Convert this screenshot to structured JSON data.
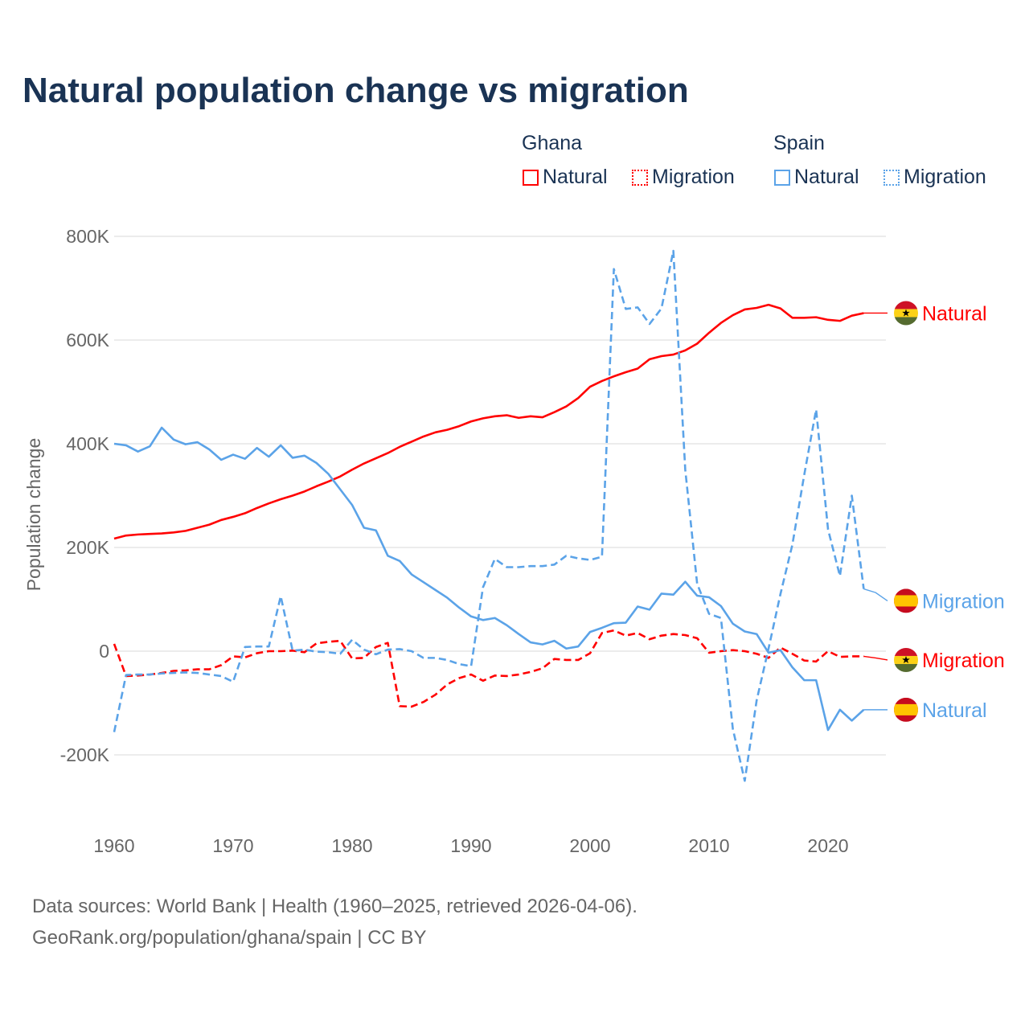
{
  "chart_data": {
    "type": "line",
    "title": "Natural population change vs migration",
    "xlabel": "",
    "ylabel": "Population change",
    "xlim": [
      1960,
      2025
    ],
    "ylim": [
      -300000,
      800000
    ],
    "x_ticks": [
      1960,
      1970,
      1980,
      1990,
      2000,
      2010,
      2020
    ],
    "x_tick_labels": [
      "1960",
      "1970",
      "1980",
      "1990",
      "2000",
      "2010",
      "2020"
    ],
    "y_ticks": [
      800000,
      600000,
      400000,
      200000,
      0,
      -200000
    ],
    "y_tick_labels": [
      "800K",
      "600K",
      "400K",
      "200K",
      "0",
      "-200K"
    ],
    "grid": true,
    "legend": {
      "placement": "top-right",
      "groups": [
        {
          "name": "Ghana",
          "items": [
            "Natural",
            "Migration"
          ]
        },
        {
          "name": "Spain",
          "items": [
            "Natural",
            "Migration"
          ]
        }
      ]
    },
    "x": [
      1960,
      1961,
      1962,
      1963,
      1964,
      1965,
      1966,
      1967,
      1968,
      1969,
      1970,
      1971,
      1972,
      1973,
      1974,
      1975,
      1976,
      1977,
      1978,
      1979,
      1980,
      1981,
      1982,
      1983,
      1984,
      1985,
      1986,
      1987,
      1988,
      1989,
      1990,
      1991,
      1992,
      1993,
      1994,
      1995,
      1996,
      1997,
      1998,
      1999,
      2000,
      2001,
      2002,
      2003,
      2004,
      2005,
      2006,
      2007,
      2008,
      2009,
      2010,
      2011,
      2012,
      2013,
      2014,
      2015,
      2016,
      2017,
      2018,
      2019,
      2020,
      2021,
      2022,
      2023,
      2024,
      2025
    ],
    "series": [
      {
        "name": "Ghana Natural",
        "country": "Ghana",
        "kind": "Natural",
        "color": "#ff0000",
        "dash": false,
        "end_label": "Natural",
        "values": [
          217000,
          223000,
          225000,
          226000,
          227000,
          229000,
          232000,
          238000,
          244000,
          253000,
          259000,
          266000,
          276000,
          285000,
          293000,
          300000,
          308000,
          318000,
          327000,
          337000,
          350000,
          362000,
          372000,
          382000,
          394000,
          404000,
          414000,
          422000,
          427000,
          434000,
          443000,
          449000,
          453000,
          455000,
          450000,
          453000,
          451000,
          461000,
          472000,
          488000,
          510000,
          521000,
          530000,
          538000,
          545000,
          563000,
          569000,
          572000,
          580000,
          593000,
          614000,
          633000,
          648000,
          659000,
          662000,
          668000,
          661000,
          643000,
          643000,
          644000,
          639000,
          637000,
          647000,
          652000,
          652000,
          652000
        ]
      },
      {
        "name": "Ghana Migration",
        "country": "Ghana",
        "kind": "Migration",
        "color": "#ff0000",
        "dash": true,
        "end_label": "Migration",
        "values": [
          14000,
          -48000,
          -47000,
          -45000,
          -42000,
          -38000,
          -37000,
          -35000,
          -35000,
          -27000,
          -10000,
          -12000,
          -4000,
          0,
          0,
          1000,
          -2000,
          15000,
          18000,
          20000,
          -14000,
          -13000,
          8000,
          16000,
          -106000,
          -107000,
          -98000,
          -84000,
          -64000,
          -52000,
          -45000,
          -57000,
          -47000,
          -48000,
          -45000,
          -40000,
          -33000,
          -15000,
          -17000,
          -17000,
          -4000,
          35000,
          40000,
          30000,
          35000,
          23000,
          30000,
          33000,
          31000,
          25000,
          -3000,
          0,
          2000,
          0,
          -5000,
          -13000,
          7000,
          -5000,
          -18000,
          -20000,
          0,
          -11000,
          -10000,
          -10000,
          -13000,
          -17000
        ]
      },
      {
        "name": "Spain Natural",
        "country": "Spain",
        "kind": "Natural",
        "color": "#5ba3e8",
        "dash": false,
        "end_label": "Natural",
        "values": [
          400000,
          397000,
          385000,
          395000,
          431000,
          408000,
          399000,
          403000,
          389000,
          369000,
          379000,
          371000,
          392000,
          375000,
          397000,
          373000,
          377000,
          363000,
          342000,
          312000,
          282000,
          238000,
          233000,
          184000,
          174000,
          148000,
          133000,
          118000,
          103000,
          84000,
          67000,
          60000,
          64000,
          50000,
          33000,
          17000,
          13000,
          20000,
          5000,
          9000,
          37000,
          45000,
          54000,
          55000,
          86000,
          80000,
          111000,
          109000,
          134000,
          107000,
          104000,
          87000,
          53000,
          38000,
          33000,
          -3000,
          2000,
          -31000,
          -56000,
          -56000,
          -152000,
          -113000,
          -134000,
          -113000,
          -113000,
          -113000
        ]
      },
      {
        "name": "Spain Migration",
        "country": "Spain",
        "kind": "Migration",
        "color": "#5ba3e8",
        "dash": true,
        "end_label": "Migration",
        "values": [
          -156000,
          -46000,
          -45000,
          -45000,
          -43000,
          -42000,
          -41000,
          -42000,
          -45000,
          -48000,
          -59000,
          8000,
          9000,
          9000,
          106000,
          1000,
          3000,
          -1000,
          -2000,
          -5000,
          22000,
          3000,
          -6000,
          3000,
          4000,
          0,
          -13000,
          -13000,
          -17000,
          -25000,
          -29000,
          123000,
          178000,
          162000,
          162000,
          164000,
          164000,
          167000,
          184000,
          179000,
          176000,
          182000,
          737000,
          660000,
          663000,
          631000,
          661000,
          772000,
          350000,
          130000,
          72000,
          64000,
          -150000,
          -250000,
          -95000,
          5000,
          110000,
          205000,
          340000,
          466000,
          235000,
          145000,
          300000,
          120000,
          113000,
          97000
        ]
      }
    ]
  },
  "legend_labels": {
    "ghana": "Ghana",
    "spain": "Spain",
    "ghana_natural": "Natural",
    "ghana_migration": "Migration",
    "spain_natural": "Natural",
    "spain_migration": "Migration"
  },
  "footer": {
    "line1": "Data sources: World Bank | Health (1960–2025, retrieved 2026-04-06).",
    "line2": "GeoRank.org/population/ghana/spain | CC BY"
  }
}
